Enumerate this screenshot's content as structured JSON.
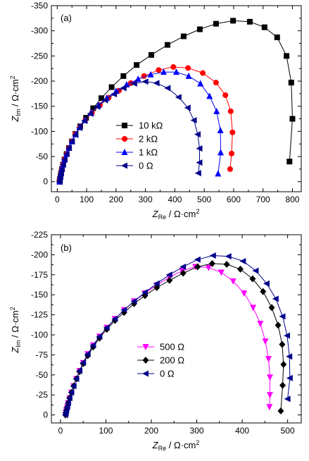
{
  "chart_data": [
    {
      "type": "scatter",
      "panel_label": "(a)",
      "xlabel": {
        "main": "Z",
        "sub": "Re",
        "unit": " / Ω·cm",
        "sup": "2"
      },
      "ylabel": {
        "main": "Z",
        "sub": "Im",
        "unit": " / Ω·cm",
        "sup": "2"
      },
      "xlim": [
        -20,
        830
      ],
      "ylim": [
        -350,
        20
      ],
      "y_inverted": true,
      "xticks": [
        0,
        100,
        200,
        300,
        400,
        500,
        600,
        700,
        800
      ],
      "yticks": [
        -350,
        -300,
        -250,
        -200,
        -150,
        -100,
        -50,
        0
      ],
      "xtick_labels": [
        "0",
        "100",
        "200",
        "300",
        "400",
        "500",
        "600",
        "700",
        "800"
      ],
      "ytick_labels": [
        "-350",
        "-300",
        "-250",
        "-200",
        "-150",
        "-100",
        "-50",
        "0"
      ],
      "grid": false,
      "legend_position": "center",
      "series": [
        {
          "name": "10 kΩ",
          "marker": "square",
          "color": "#000000",
          "x": [
            8,
            9,
            11,
            13,
            16,
            20,
            25,
            32,
            40,
            50,
            62,
            78,
            98,
            122,
            150,
            185,
            225,
            270,
            320,
            375,
            430,
            485,
            540,
            598,
            655,
            705,
            748,
            780,
            796,
            800,
            790
          ],
          "y": [
            0,
            -4,
            -10,
            -17,
            -25,
            -34,
            -44,
            -55,
            -67,
            -80,
            -95,
            -110,
            -127,
            -146,
            -166,
            -188,
            -210,
            -232,
            -252,
            -272,
            -289,
            -303,
            -314,
            -320,
            -318,
            -307,
            -287,
            -250,
            -197,
            -125,
            -40
          ]
        },
        {
          "name": "2 kΩ",
          "marker": "circle",
          "color": "#ff0000",
          "x": [
            8,
            9,
            11,
            13,
            16,
            20,
            25,
            32,
            40,
            50,
            62,
            77,
            95,
            118,
            145,
            175,
            210,
            250,
            295,
            345,
            395,
            445,
            495,
            540,
            572,
            590,
            596,
            593,
            588
          ],
          "y": [
            0,
            -4,
            -10,
            -17,
            -25,
            -34,
            -44,
            -55,
            -67,
            -80,
            -95,
            -108,
            -122,
            -137,
            -152,
            -167,
            -181,
            -196,
            -210,
            -222,
            -228,
            -226,
            -216,
            -197,
            -172,
            -140,
            -98,
            -56,
            -25
          ]
        },
        {
          "name": "1 kΩ",
          "marker": "triangle-up",
          "color": "#0000ff",
          "x": [
            8,
            9,
            11,
            13,
            16,
            20,
            25,
            32,
            40,
            50,
            62,
            76,
            94,
            115,
            140,
            168,
            200,
            236,
            275,
            318,
            362,
            405,
            447,
            487,
            518,
            542,
            555,
            556,
            547
          ],
          "y": [
            0,
            -4,
            -10,
            -17,
            -25,
            -34,
            -44,
            -55,
            -67,
            -80,
            -94,
            -108,
            -122,
            -137,
            -152,
            -166,
            -180,
            -193,
            -204,
            -213,
            -218,
            -218,
            -210,
            -195,
            -170,
            -140,
            -102,
            -58,
            -16
          ]
        },
        {
          "name": "0 Ω",
          "marker": "triangle-left",
          "color": "#00008b",
          "x": [
            8,
            9,
            11,
            13,
            16,
            20,
            25,
            32,
            40,
            50,
            62,
            76,
            93,
            113,
            137,
            163,
            193,
            226,
            262,
            300,
            338,
            376,
            413,
            444,
            465,
            478,
            484,
            484,
            480
          ],
          "y": [
            0,
            -4,
            -10,
            -17,
            -25,
            -34,
            -44,
            -55,
            -67,
            -80,
            -93,
            -107,
            -121,
            -135,
            -149,
            -162,
            -174,
            -186,
            -195,
            -199,
            -196,
            -186,
            -168,
            -147,
            -122,
            -94,
            -66,
            -38,
            -17
          ]
        }
      ]
    },
    {
      "type": "scatter",
      "panel_label": "(b)",
      "xlabel": {
        "main": "Z",
        "sub": "Re",
        "unit": " / Ω·cm",
        "sup": "2"
      },
      "ylabel": {
        "main": "Z",
        "sub": "Im",
        "unit": " / Ω·cm",
        "sup": "2"
      },
      "xlim": [
        -20,
        530
      ],
      "ylim": [
        -225,
        10
      ],
      "y_inverted": true,
      "xticks": [
        0,
        100,
        200,
        300,
        400,
        500
      ],
      "yticks": [
        -225,
        -200,
        -175,
        -150,
        -125,
        -100,
        -75,
        -50,
        -25,
        0
      ],
      "xtick_labels": [
        "0",
        "100",
        "200",
        "300",
        "400",
        "500"
      ],
      "ytick_labels": [
        "-225",
        "-200",
        "-175",
        "-150",
        "-125",
        "-100",
        "-75",
        "-50",
        "-25",
        "0"
      ],
      "grid": false,
      "legend_position": "center",
      "series": [
        {
          "name": "500 Ω",
          "marker": "triangle-down",
          "color": "#ff00ff",
          "x": [
            11,
            12,
            13,
            15,
            17,
            20,
            24,
            29,
            35,
            42,
            50,
            60,
            72,
            86,
            102,
            120,
            140,
            162,
            186,
            212,
            240,
            268,
            297,
            326,
            354,
            380,
            404,
            424,
            440,
            451,
            458,
            461,
            461,
            460
          ],
          "y": [
            0,
            -3,
            -6,
            -10,
            -15,
            -21,
            -28,
            -36,
            -45,
            -55,
            -65,
            -76,
            -87,
            -98,
            -109,
            -120,
            -131,
            -142,
            -152,
            -162,
            -172,
            -180,
            -185,
            -184,
            -178,
            -167,
            -152,
            -134,
            -114,
            -92,
            -70,
            -47,
            -25,
            -10
          ]
        },
        {
          "name": "200 Ω",
          "marker": "diamond",
          "color": "#000000",
          "x": [
            11,
            12,
            13,
            15,
            17,
            20,
            24,
            29,
            35,
            42,
            50,
            60,
            72,
            86,
            102,
            120,
            140,
            162,
            186,
            212,
            240,
            270,
            302,
            334,
            366,
            396,
            423,
            446,
            465,
            479,
            488,
            491,
            489,
            485
          ],
          "y": [
            0,
            -3,
            -6,
            -10,
            -15,
            -21,
            -28,
            -36,
            -45,
            -54,
            -64,
            -74,
            -85,
            -96,
            -107,
            -118,
            -128,
            -139,
            -149,
            -159,
            -168,
            -177,
            -185,
            -189,
            -188,
            -182,
            -170,
            -154,
            -134,
            -112,
            -88,
            -63,
            -37,
            -5
          ]
        },
        {
          "name": "0 Ω",
          "marker": "triangle-left",
          "color": "#00008b",
          "x": [
            11,
            12,
            13,
            15,
            17,
            20,
            24,
            29,
            35,
            42,
            50,
            60,
            72,
            86,
            102,
            120,
            140,
            162,
            186,
            212,
            240,
            270,
            302,
            336,
            370,
            402,
            430,
            454,
            474,
            489,
            499,
            504,
            505,
            500
          ],
          "y": [
            0,
            -3,
            -6,
            -10,
            -15,
            -21,
            -28,
            -36,
            -45,
            -55,
            -65,
            -76,
            -87,
            -98,
            -109,
            -120,
            -131,
            -142,
            -153,
            -164,
            -175,
            -185,
            -194,
            -199,
            -198,
            -192,
            -180,
            -164,
            -145,
            -123,
            -99,
            -73,
            -46,
            -20
          ]
        }
      ]
    }
  ]
}
